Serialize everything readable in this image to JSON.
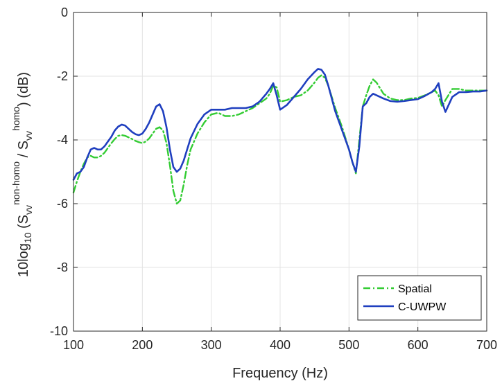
{
  "chart_data": {
    "type": "line",
    "xlabel": "Frequency (Hz)",
    "ylabel": {
      "prefix": "10log",
      "prefix_sub": "10",
      "open": " (S",
      "num_sub": "vv",
      "num_sup": "non-homo",
      "slash": " / S",
      "den_sub": "vv",
      "den_sup": "homo",
      "close": ") (dB)"
    },
    "xlim": [
      100,
      700
    ],
    "ylim": [
      -10,
      0
    ],
    "xticks": [
      100,
      200,
      300,
      400,
      500,
      600,
      700
    ],
    "xtick_labels": [
      "100",
      "200",
      "300",
      "400",
      "500",
      "600",
      "700"
    ],
    "yticks": [
      -10,
      -8,
      -6,
      -4,
      -2,
      0
    ],
    "ytick_labels": [
      "-10",
      "-8",
      "-6",
      "-4",
      "-2",
      "0"
    ],
    "grid": true,
    "legend_position": "bottom-right",
    "series": [
      {
        "name": "Spatial",
        "color": "#33cc33",
        "style": "dash-dot",
        "x": [
          100,
          105,
          110,
          115,
          120,
          125,
          130,
          135,
          140,
          145,
          150,
          155,
          160,
          165,
          170,
          175,
          180,
          185,
          190,
          195,
          200,
          205,
          210,
          215,
          220,
          225,
          230,
          235,
          240,
          245,
          250,
          255,
          260,
          265,
          270,
          280,
          290,
          300,
          310,
          320,
          330,
          340,
          350,
          360,
          370,
          380,
          385,
          390,
          395,
          400,
          410,
          420,
          430,
          440,
          450,
          455,
          460,
          465,
          470,
          480,
          490,
          500,
          505,
          510,
          515,
          520,
          525,
          530,
          535,
          540,
          550,
          560,
          570,
          580,
          590,
          600,
          610,
          620,
          625,
          630,
          635,
          640,
          650,
          660,
          670,
          680,
          690,
          700
        ],
        "y": [
          -5.65,
          -5.3,
          -5.0,
          -4.75,
          -4.55,
          -4.5,
          -4.55,
          -4.55,
          -4.5,
          -4.4,
          -4.25,
          -4.1,
          -3.97,
          -3.87,
          -3.85,
          -3.87,
          -3.92,
          -3.97,
          -4.03,
          -4.07,
          -4.1,
          -4.05,
          -3.95,
          -3.8,
          -3.65,
          -3.6,
          -3.7,
          -4.1,
          -4.8,
          -5.6,
          -6.0,
          -5.9,
          -5.4,
          -4.8,
          -4.3,
          -3.8,
          -3.45,
          -3.2,
          -3.15,
          -3.25,
          -3.25,
          -3.2,
          -3.1,
          -3.0,
          -2.85,
          -2.7,
          -2.55,
          -2.3,
          -2.35,
          -2.8,
          -2.75,
          -2.65,
          -2.6,
          -2.45,
          -2.2,
          -2.05,
          -1.97,
          -2.05,
          -2.3,
          -3.0,
          -3.6,
          -4.3,
          -4.7,
          -5.05,
          -4.0,
          -2.95,
          -2.6,
          -2.3,
          -2.1,
          -2.2,
          -2.55,
          -2.7,
          -2.75,
          -2.75,
          -2.7,
          -2.68,
          -2.6,
          -2.5,
          -2.45,
          -2.6,
          -2.95,
          -2.75,
          -2.4,
          -2.4,
          -2.45,
          -2.45,
          -2.45,
          -2.45
        ]
      },
      {
        "name": "C-UWPW",
        "color": "#1f3fbf",
        "style": "solid",
        "x": [
          100,
          105,
          110,
          115,
          120,
          125,
          130,
          135,
          140,
          145,
          150,
          155,
          160,
          165,
          170,
          175,
          180,
          185,
          190,
          195,
          200,
          205,
          210,
          215,
          220,
          225,
          230,
          235,
          240,
          245,
          250,
          255,
          260,
          265,
          270,
          280,
          290,
          300,
          310,
          320,
          330,
          340,
          350,
          360,
          370,
          380,
          385,
          390,
          395,
          400,
          410,
          420,
          430,
          440,
          450,
          455,
          460,
          465,
          470,
          480,
          490,
          500,
          505,
          510,
          515,
          520,
          525,
          530,
          535,
          540,
          550,
          560,
          570,
          580,
          590,
          600,
          610,
          620,
          625,
          630,
          635,
          640,
          650,
          660,
          670,
          680,
          690,
          700
        ],
        "y": [
          -5.25,
          -5.05,
          -5.0,
          -4.85,
          -4.55,
          -4.3,
          -4.25,
          -4.3,
          -4.3,
          -4.2,
          -4.05,
          -3.9,
          -3.7,
          -3.58,
          -3.52,
          -3.55,
          -3.65,
          -3.75,
          -3.82,
          -3.85,
          -3.8,
          -3.65,
          -3.45,
          -3.2,
          -2.95,
          -2.88,
          -3.1,
          -3.6,
          -4.3,
          -4.85,
          -5.0,
          -4.9,
          -4.65,
          -4.3,
          -3.95,
          -3.5,
          -3.2,
          -3.05,
          -3.05,
          -3.05,
          -3.0,
          -3.0,
          -3.0,
          -2.95,
          -2.8,
          -2.55,
          -2.4,
          -2.22,
          -2.6,
          -3.05,
          -2.9,
          -2.65,
          -2.4,
          -2.1,
          -1.87,
          -1.77,
          -1.8,
          -1.95,
          -2.3,
          -3.1,
          -3.7,
          -4.3,
          -4.7,
          -5.0,
          -4.2,
          -2.95,
          -2.85,
          -2.65,
          -2.55,
          -2.6,
          -2.7,
          -2.78,
          -2.8,
          -2.78,
          -2.75,
          -2.72,
          -2.62,
          -2.5,
          -2.4,
          -2.22,
          -2.8,
          -3.12,
          -2.65,
          -2.5,
          -2.5,
          -2.48,
          -2.48,
          -2.45
        ]
      }
    ]
  }
}
